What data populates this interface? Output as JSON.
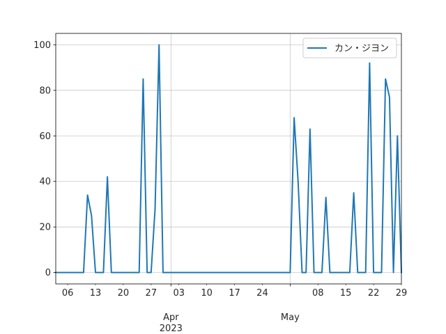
{
  "chart_data": {
    "type": "line",
    "title": "",
    "xlabel": "",
    "ylabel": "",
    "ylim": [
      -5,
      105
    ],
    "xlim": [
      "2023-03-03",
      "2023-05-29"
    ],
    "grid": true,
    "legend_position": "top-right",
    "y_ticks": [
      0,
      20,
      40,
      60,
      80,
      100
    ],
    "x_minor_ticks": [
      {
        "date": "2023-03-06",
        "label": "06"
      },
      {
        "date": "2023-03-13",
        "label": "13"
      },
      {
        "date": "2023-03-20",
        "label": "20"
      },
      {
        "date": "2023-03-27",
        "label": "27"
      },
      {
        "date": "2023-04-03",
        "label": "03"
      },
      {
        "date": "2023-04-10",
        "label": "10"
      },
      {
        "date": "2023-04-17",
        "label": "17"
      },
      {
        "date": "2023-04-24",
        "label": "24"
      },
      {
        "date": "2023-05-08",
        "label": "08"
      },
      {
        "date": "2023-05-15",
        "label": "15"
      },
      {
        "date": "2023-05-22",
        "label": "22"
      },
      {
        "date": "2023-05-29",
        "label": "29"
      }
    ],
    "x_major_ticks": [
      {
        "date": "2023-04-01",
        "label": "Apr",
        "sublabel": "2023"
      },
      {
        "date": "2023-05-01",
        "label": "May",
        "sublabel": ""
      }
    ],
    "series": [
      {
        "name": "カン・ジヨン",
        "color": "#1f77b4",
        "points": [
          [
            "2023-03-03",
            0
          ],
          [
            "2023-03-04",
            0
          ],
          [
            "2023-03-05",
            0
          ],
          [
            "2023-03-06",
            0
          ],
          [
            "2023-03-07",
            0
          ],
          [
            "2023-03-08",
            0
          ],
          [
            "2023-03-09",
            0
          ],
          [
            "2023-03-10",
            0
          ],
          [
            "2023-03-11",
            34
          ],
          [
            "2023-03-12",
            25
          ],
          [
            "2023-03-13",
            0
          ],
          [
            "2023-03-14",
            0
          ],
          [
            "2023-03-15",
            0
          ],
          [
            "2023-03-16",
            42
          ],
          [
            "2023-03-17",
            0
          ],
          [
            "2023-03-18",
            0
          ],
          [
            "2023-03-19",
            0
          ],
          [
            "2023-03-20",
            0
          ],
          [
            "2023-03-21",
            0
          ],
          [
            "2023-03-22",
            0
          ],
          [
            "2023-03-23",
            0
          ],
          [
            "2023-03-24",
            0
          ],
          [
            "2023-03-25",
            85
          ],
          [
            "2023-03-26",
            0
          ],
          [
            "2023-03-27",
            0
          ],
          [
            "2023-03-28",
            28
          ],
          [
            "2023-03-29",
            100
          ],
          [
            "2023-03-30",
            0
          ],
          [
            "2023-03-31",
            0
          ],
          [
            "2023-04-01",
            0
          ],
          [
            "2023-04-02",
            0
          ],
          [
            "2023-04-03",
            0
          ],
          [
            "2023-04-04",
            0
          ],
          [
            "2023-04-05",
            0
          ],
          [
            "2023-04-06",
            0
          ],
          [
            "2023-04-07",
            0
          ],
          [
            "2023-04-08",
            0
          ],
          [
            "2023-04-09",
            0
          ],
          [
            "2023-04-10",
            0
          ],
          [
            "2023-04-11",
            0
          ],
          [
            "2023-04-12",
            0
          ],
          [
            "2023-04-13",
            0
          ],
          [
            "2023-04-14",
            0
          ],
          [
            "2023-04-15",
            0
          ],
          [
            "2023-04-16",
            0
          ],
          [
            "2023-04-17",
            0
          ],
          [
            "2023-04-18",
            0
          ],
          [
            "2023-04-19",
            0
          ],
          [
            "2023-04-20",
            0
          ],
          [
            "2023-04-21",
            0
          ],
          [
            "2023-04-22",
            0
          ],
          [
            "2023-04-23",
            0
          ],
          [
            "2023-04-24",
            0
          ],
          [
            "2023-04-25",
            0
          ],
          [
            "2023-04-26",
            0
          ],
          [
            "2023-04-27",
            0
          ],
          [
            "2023-04-28",
            0
          ],
          [
            "2023-04-29",
            0
          ],
          [
            "2023-04-30",
            0
          ],
          [
            "2023-05-01",
            0
          ],
          [
            "2023-05-02",
            68
          ],
          [
            "2023-05-03",
            40
          ],
          [
            "2023-05-04",
            0
          ],
          [
            "2023-05-05",
            0
          ],
          [
            "2023-05-06",
            63
          ],
          [
            "2023-05-07",
            0
          ],
          [
            "2023-05-08",
            0
          ],
          [
            "2023-05-09",
            0
          ],
          [
            "2023-05-10",
            33
          ],
          [
            "2023-05-11",
            0
          ],
          [
            "2023-05-12",
            0
          ],
          [
            "2023-05-13",
            0
          ],
          [
            "2023-05-14",
            0
          ],
          [
            "2023-05-15",
            0
          ],
          [
            "2023-05-16",
            0
          ],
          [
            "2023-05-17",
            35
          ],
          [
            "2023-05-18",
            0
          ],
          [
            "2023-05-19",
            0
          ],
          [
            "2023-05-20",
            0
          ],
          [
            "2023-05-21",
            92
          ],
          [
            "2023-05-22",
            0
          ],
          [
            "2023-05-23",
            0
          ],
          [
            "2023-05-24",
            0
          ],
          [
            "2023-05-25",
            85
          ],
          [
            "2023-05-26",
            77
          ],
          [
            "2023-05-27",
            0
          ],
          [
            "2023-05-28",
            60
          ],
          [
            "2023-05-29",
            0
          ]
        ]
      }
    ]
  }
}
